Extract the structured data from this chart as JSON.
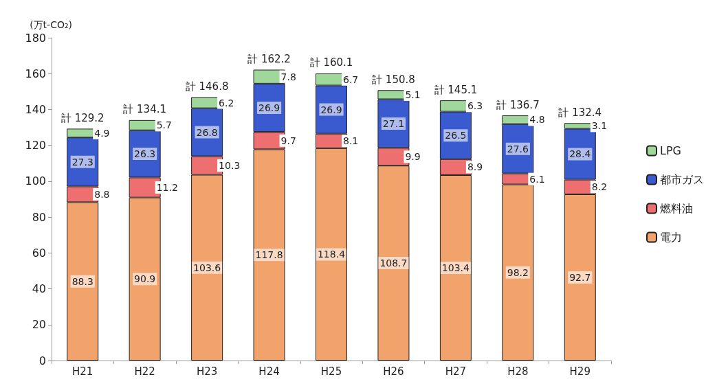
{
  "chart_data": {
    "type": "bar",
    "stacked": true,
    "ylabel": "(万t-CO₂)",
    "categories": [
      "H21",
      "H22",
      "H23",
      "H24",
      "H25",
      "H26",
      "H27",
      "H28",
      "H29"
    ],
    "series": [
      {
        "name": "電力",
        "color": "#f2a36b",
        "values": [
          88.3,
          90.9,
          103.6,
          117.8,
          118.4,
          108.7,
          103.4,
          98.2,
          92.7
        ]
      },
      {
        "name": "燃料油",
        "color": "#ee6f6f",
        "values": [
          8.8,
          11.2,
          10.3,
          9.7,
          8.1,
          9.9,
          8.9,
          6.1,
          8.2
        ]
      },
      {
        "name": "都市ガス",
        "color": "#3a5bd0",
        "values": [
          27.3,
          26.3,
          26.8,
          26.9,
          26.9,
          27.1,
          26.5,
          27.6,
          28.4
        ]
      },
      {
        "name": "LPG",
        "color": "#9fd89a",
        "values": [
          4.9,
          5.7,
          6.2,
          7.8,
          6.7,
          5.1,
          6.3,
          4.8,
          3.1
        ]
      }
    ],
    "totals": [
      "計 129.2",
      "計 134.1",
      "計 146.8",
      "計 162.2",
      "計 160.1",
      "計 150.8",
      "計 145.1",
      "計 136.7",
      "計 132.4"
    ],
    "ylim": [
      0,
      180
    ],
    "yticks": [
      0,
      20,
      40,
      60,
      80,
      100,
      120,
      140,
      160,
      180
    ],
    "grid": false,
    "legend": "right",
    "data_labels": true
  }
}
